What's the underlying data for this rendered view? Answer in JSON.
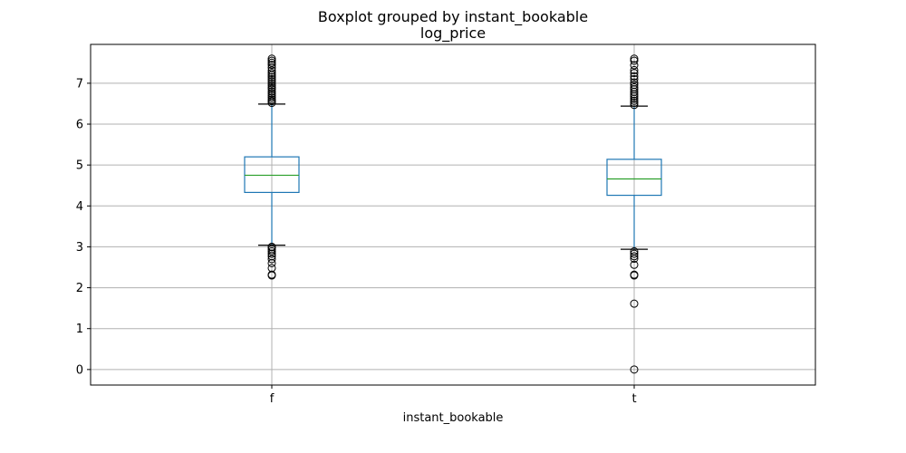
{
  "chart_data": {
    "type": "boxplot",
    "suptitle": "Boxplot grouped by instant_bookable",
    "title": "log_price",
    "xlabel": "instant_bookable",
    "ylabel": "",
    "ylim": [
      -0.38,
      7.95
    ],
    "yticks": [
      0,
      1,
      2,
      3,
      4,
      5,
      6,
      7
    ],
    "grid": true,
    "categories": [
      "f",
      "t"
    ],
    "boxes": [
      {
        "category": "f",
        "whisker_low": 3.04,
        "q1": 4.33,
        "median": 4.75,
        "q3": 5.2,
        "whisker_high": 6.49,
        "outliers": [
          2.3,
          2.32,
          2.48,
          2.6,
          2.7,
          2.77,
          2.83,
          2.89,
          2.94,
          2.99,
          3.0,
          6.52,
          6.56,
          6.6,
          6.65,
          6.7,
          6.75,
          6.8,
          6.86,
          6.9,
          6.95,
          7.0,
          7.05,
          7.1,
          7.15,
          7.2,
          7.25,
          7.31,
          7.38,
          7.45,
          7.5,
          7.55,
          7.6
        ]
      },
      {
        "category": "t",
        "whisker_low": 2.94,
        "q1": 4.26,
        "median": 4.66,
        "q3": 5.14,
        "whisker_high": 6.44,
        "outliers": [
          0.0,
          1.61,
          2.3,
          2.32,
          2.56,
          2.71,
          2.77,
          2.83,
          2.89,
          6.47,
          6.52,
          6.57,
          6.62,
          6.68,
          6.73,
          6.79,
          6.85,
          6.9,
          6.96,
          7.02,
          7.1,
          7.17,
          7.25,
          7.32,
          7.44,
          7.55,
          7.6
        ]
      }
    ],
    "colors": {
      "box": "#1f77b4",
      "median": "#2ca02c",
      "caps": "#000000",
      "outlier": "#000000",
      "grid": "#b0b0b0"
    }
  }
}
